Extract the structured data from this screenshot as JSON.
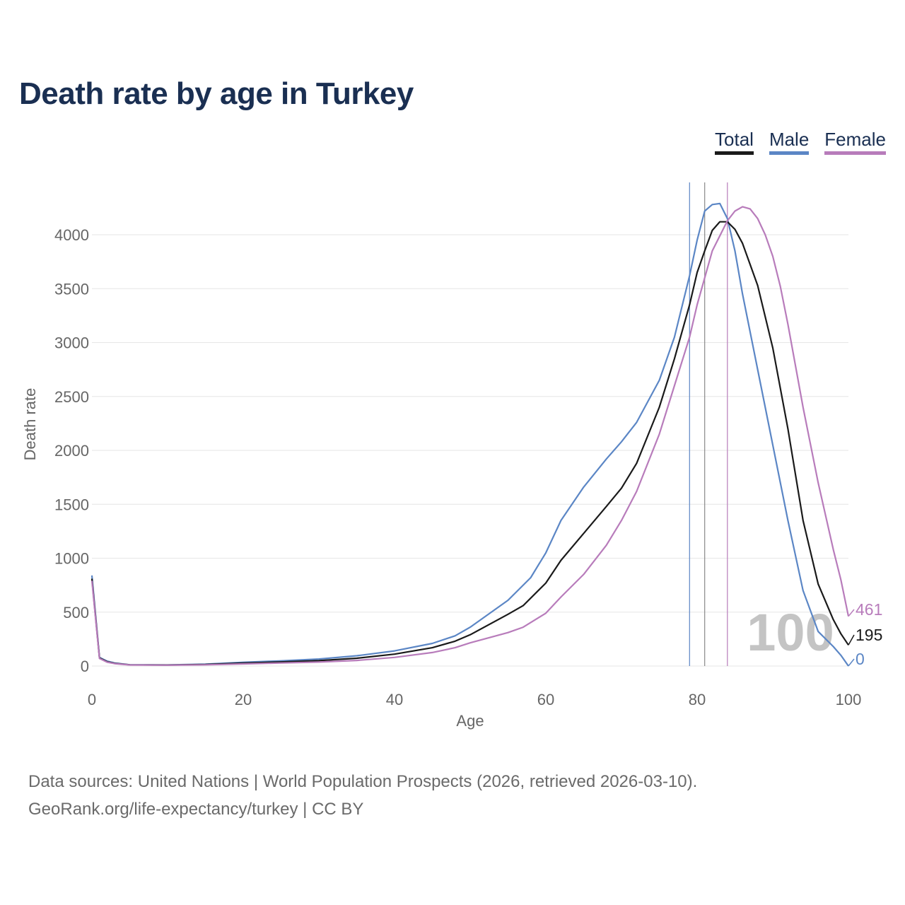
{
  "title": "Death rate by age in Turkey",
  "legend": [
    {
      "label": "Total",
      "color": "#1a1a1a"
    },
    {
      "label": "Male",
      "color": "#5b86c5"
    },
    {
      "label": "Female",
      "color": "#b87cbb"
    }
  ],
  "footer": {
    "line1": "Data sources: United Nations | World Population Prospects (2026, retrieved 2026-03-10).",
    "line2": "GeoRank.org/life-expectancy/turkey | CC BY"
  },
  "chart_data": {
    "type": "line",
    "xlabel": "Age",
    "ylabel": "Death rate",
    "xlim": [
      0,
      100
    ],
    "ylim": [
      0,
      4300
    ],
    "x_ticks": [
      0,
      20,
      40,
      60,
      80,
      100
    ],
    "y_ticks": [
      0,
      500,
      1000,
      1500,
      2000,
      2500,
      3000,
      3500,
      4000
    ],
    "grid": "horizontal",
    "year_watermark": "100",
    "vertical_markers": [
      {
        "series": "Male",
        "x": 79
      },
      {
        "series": "Total",
        "x": 81
      },
      {
        "series": "Female",
        "x": 84
      }
    ],
    "end_labels": [
      {
        "series": "Female",
        "text": "461"
      },
      {
        "series": "Total",
        "text": "195"
      },
      {
        "series": "Male",
        "text": "0"
      }
    ],
    "series": [
      {
        "name": "Male",
        "color": "#5b86c5",
        "points": [
          [
            0,
            840
          ],
          [
            1,
            80
          ],
          [
            2,
            45
          ],
          [
            3,
            28
          ],
          [
            5,
            12
          ],
          [
            10,
            10
          ],
          [
            15,
            18
          ],
          [
            20,
            35
          ],
          [
            25,
            48
          ],
          [
            30,
            65
          ],
          [
            35,
            95
          ],
          [
            40,
            140
          ],
          [
            45,
            210
          ],
          [
            48,
            280
          ],
          [
            50,
            360
          ],
          [
            55,
            610
          ],
          [
            58,
            820
          ],
          [
            60,
            1050
          ],
          [
            62,
            1350
          ],
          [
            65,
            1660
          ],
          [
            68,
            1920
          ],
          [
            70,
            2080
          ],
          [
            72,
            2260
          ],
          [
            75,
            2650
          ],
          [
            77,
            3050
          ],
          [
            79,
            3620
          ],
          [
            80,
            3950
          ],
          [
            81,
            4220
          ],
          [
            82,
            4280
          ],
          [
            83,
            4290
          ],
          [
            84,
            4150
          ],
          [
            85,
            3850
          ],
          [
            86,
            3450
          ],
          [
            88,
            2750
          ],
          [
            90,
            2050
          ],
          [
            92,
            1350
          ],
          [
            94,
            700
          ],
          [
            96,
            320
          ],
          [
            98,
            180
          ],
          [
            99,
            100
          ],
          [
            100,
            0
          ]
        ]
      },
      {
        "name": "Total",
        "color": "#1a1a1a",
        "points": [
          [
            0,
            810
          ],
          [
            1,
            75
          ],
          [
            2,
            40
          ],
          [
            3,
            25
          ],
          [
            5,
            11
          ],
          [
            10,
            9
          ],
          [
            15,
            14
          ],
          [
            20,
            27
          ],
          [
            25,
            38
          ],
          [
            30,
            50
          ],
          [
            35,
            72
          ],
          [
            40,
            110
          ],
          [
            45,
            170
          ],
          [
            48,
            230
          ],
          [
            50,
            290
          ],
          [
            55,
            480
          ],
          [
            57,
            560
          ],
          [
            60,
            770
          ],
          [
            62,
            980
          ],
          [
            65,
            1230
          ],
          [
            68,
            1480
          ],
          [
            70,
            1650
          ],
          [
            72,
            1880
          ],
          [
            75,
            2400
          ],
          [
            77,
            2850
          ],
          [
            79,
            3350
          ],
          [
            80,
            3650
          ],
          [
            81,
            3850
          ],
          [
            82,
            4040
          ],
          [
            83,
            4120
          ],
          [
            84,
            4120
          ],
          [
            85,
            4050
          ],
          [
            86,
            3920
          ],
          [
            88,
            3530
          ],
          [
            90,
            2950
          ],
          [
            92,
            2200
          ],
          [
            94,
            1350
          ],
          [
            96,
            760
          ],
          [
            98,
            430
          ],
          [
            99,
            300
          ],
          [
            100,
            195
          ]
        ]
      },
      {
        "name": "Female",
        "color": "#b87cbb",
        "points": [
          [
            0,
            790
          ],
          [
            1,
            70
          ],
          [
            2,
            36
          ],
          [
            3,
            22
          ],
          [
            5,
            10
          ],
          [
            10,
            8
          ],
          [
            15,
            11
          ],
          [
            20,
            20
          ],
          [
            25,
            28
          ],
          [
            30,
            37
          ],
          [
            35,
            52
          ],
          [
            40,
            80
          ],
          [
            45,
            125
          ],
          [
            48,
            170
          ],
          [
            50,
            215
          ],
          [
            55,
            310
          ],
          [
            57,
            360
          ],
          [
            60,
            490
          ],
          [
            62,
            640
          ],
          [
            65,
            850
          ],
          [
            68,
            1120
          ],
          [
            70,
            1350
          ],
          [
            72,
            1620
          ],
          [
            75,
            2150
          ],
          [
            77,
            2600
          ],
          [
            79,
            3050
          ],
          [
            80,
            3350
          ],
          [
            82,
            3850
          ],
          [
            84,
            4130
          ],
          [
            85,
            4220
          ],
          [
            86,
            4260
          ],
          [
            87,
            4240
          ],
          [
            88,
            4150
          ],
          [
            89,
            4000
          ],
          [
            90,
            3800
          ],
          [
            91,
            3520
          ],
          [
            92,
            3170
          ],
          [
            94,
            2400
          ],
          [
            96,
            1700
          ],
          [
            98,
            1080
          ],
          [
            99,
            800
          ],
          [
            100,
            461
          ]
        ]
      }
    ]
  }
}
